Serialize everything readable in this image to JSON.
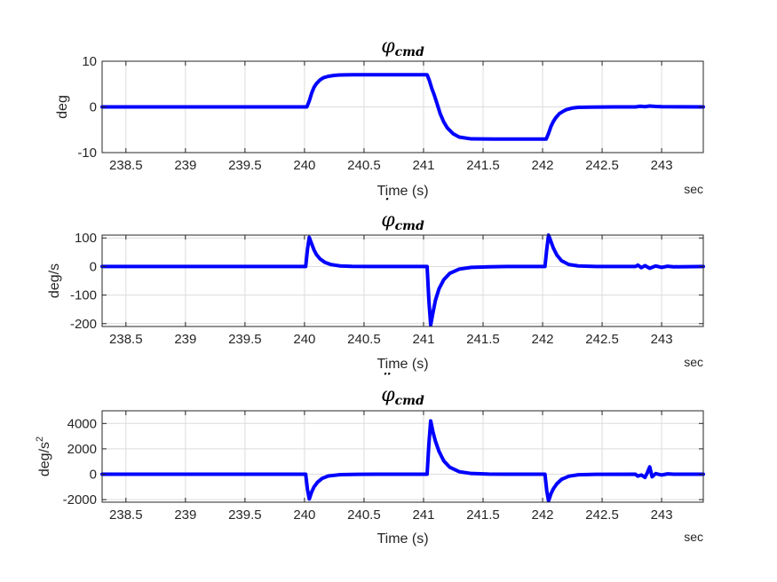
{
  "figure": {
    "background": "#ffffff",
    "line_color": "#0000ff"
  },
  "chart_data": [
    {
      "type": "line",
      "title": "φ",
      "title_subscript": "cmd",
      "title_accent": "",
      "xlabel": "Time (s)",
      "xunit": "sec",
      "ylabel": "deg",
      "ylabel_sup": "",
      "xlim": [
        238.3,
        243.35
      ],
      "ylim": [
        -10,
        10
      ],
      "xticks": [
        238.5,
        239,
        239.5,
        240,
        240.5,
        241,
        241.5,
        242,
        242.5,
        243
      ],
      "xtick_labels": [
        "238.5",
        "239",
        "239.5",
        "240",
        "240.5",
        "241",
        "241.5",
        "242",
        "242.5",
        "243"
      ],
      "yticks": [
        -10,
        0,
        10
      ],
      "ytick_labels": [
        "-10",
        "0",
        "10"
      ],
      "grid": true,
      "series": [
        {
          "x": [
            238.3,
            240.02,
            240.04,
            240.06,
            240.08,
            240.1,
            240.13,
            240.16,
            240.2,
            240.25,
            240.3,
            240.4,
            240.6,
            241.03,
            241.05,
            241.07,
            241.09,
            241.11,
            241.14,
            241.17,
            241.2,
            241.25,
            241.3,
            241.4,
            241.6,
            242.03,
            242.05,
            242.07,
            242.09,
            242.11,
            242.14,
            242.17,
            242.2,
            242.25,
            242.3,
            242.4,
            242.6,
            242.78,
            242.82,
            242.86,
            242.9,
            242.95,
            243.0,
            243.35
          ],
          "y": [
            0,
            0,
            1.3,
            3.0,
            4.3,
            5.1,
            5.9,
            6.4,
            6.7,
            6.9,
            7.0,
            7.05,
            7.05,
            7.05,
            5.7,
            4.0,
            2.6,
            1.0,
            -1.5,
            -3.3,
            -4.6,
            -5.9,
            -6.6,
            -7.0,
            -7.05,
            -7.05,
            -5.8,
            -4.3,
            -3.2,
            -2.4,
            -1.5,
            -1.0,
            -0.6,
            -0.25,
            -0.1,
            -0.05,
            0,
            0,
            0.15,
            0.05,
            0.2,
            0.1,
            0.05,
            0
          ]
        }
      ]
    },
    {
      "type": "line",
      "title": "φ",
      "title_subscript": "cmd",
      "title_accent": "˙",
      "xlabel": "Time (s)",
      "xunit": "sec",
      "ylabel": "deg/s",
      "ylabel_sup": "",
      "xlim": [
        238.3,
        243.35
      ],
      "ylim": [
        -210,
        110
      ],
      "xticks": [
        238.5,
        239,
        239.5,
        240,
        240.5,
        241,
        241.5,
        242,
        242.5,
        243
      ],
      "xtick_labels": [
        "238.5",
        "239",
        "239.5",
        "240",
        "240.5",
        "241",
        "241.5",
        "242",
        "242.5",
        "243"
      ],
      "yticks": [
        -200,
        -100,
        0,
        100
      ],
      "ytick_labels": [
        "-200",
        "-100",
        "0",
        "100"
      ],
      "grid": true,
      "series": [
        {
          "x": [
            238.3,
            240.01,
            240.025,
            240.04,
            240.06,
            240.08,
            240.1,
            240.13,
            240.17,
            240.22,
            240.3,
            240.4,
            240.55,
            241.03,
            241.045,
            241.06,
            241.08,
            241.1,
            241.13,
            241.17,
            241.22,
            241.3,
            241.4,
            241.55,
            241.7,
            242.02,
            242.035,
            242.05,
            242.07,
            242.09,
            242.12,
            242.16,
            242.22,
            242.3,
            242.45,
            242.78,
            242.8,
            242.83,
            242.86,
            242.9,
            242.95,
            243.0,
            243.05,
            243.1,
            243.35
          ],
          "y": [
            0,
            0,
            60,
            102,
            80,
            58,
            42,
            27,
            15,
            7,
            2,
            0.5,
            0,
            0,
            -120,
            -205,
            -160,
            -118,
            -78,
            -46,
            -24,
            -9,
            -3,
            -1,
            0,
            0,
            60,
            110,
            88,
            65,
            40,
            20,
            7,
            2,
            0,
            0,
            5,
            -4,
            3,
            -6,
            2,
            -3,
            1,
            -1,
            0
          ]
        }
      ]
    },
    {
      "type": "line",
      "title": "φ",
      "title_subscript": "cmd",
      "title_accent": "¨",
      "xlabel": "Time (s)",
      "xunit": "sec",
      "ylabel": "deg/s",
      "ylabel_sup": "2",
      "xlim": [
        238.3,
        243.35
      ],
      "ylim": [
        -2200,
        5000
      ],
      "xticks": [
        238.5,
        239,
        239.5,
        240,
        240.5,
        241,
        241.5,
        242,
        242.5,
        243
      ],
      "xtick_labels": [
        "238.5",
        "239",
        "239.5",
        "240",
        "240.5",
        "241",
        "241.5",
        "242",
        "242.5",
        "243"
      ],
      "yticks": [
        -2000,
        0,
        2000,
        4000
      ],
      "ytick_labels": [
        "-2000",
        "0",
        "2000",
        "4000"
      ],
      "grid": true,
      "series": [
        {
          "x": [
            238.3,
            240.01,
            240.025,
            240.04,
            240.06,
            240.08,
            240.11,
            240.15,
            240.2,
            240.3,
            240.45,
            240.6,
            241.03,
            241.045,
            241.06,
            241.08,
            241.1,
            241.13,
            241.17,
            241.22,
            241.3,
            241.4,
            241.55,
            241.7,
            242.02,
            242.035,
            242.05,
            242.07,
            242.09,
            242.12,
            242.16,
            242.22,
            242.3,
            242.45,
            242.78,
            242.8,
            242.83,
            242.86,
            242.88,
            242.9,
            242.92,
            242.95,
            243.0,
            243.05,
            243.1,
            243.35
          ],
          "y": [
            0,
            0,
            -1200,
            -1950,
            -1400,
            -1000,
            -620,
            -320,
            -140,
            -30,
            -5,
            0,
            0,
            2400,
            4200,
            3300,
            2600,
            1800,
            1050,
            550,
            200,
            60,
            10,
            0,
            0,
            -1300,
            -2100,
            -1550,
            -1150,
            -750,
            -400,
            -160,
            -40,
            -5,
            0,
            -150,
            -60,
            -250,
            120,
            580,
            -200,
            50,
            -60,
            30,
            0,
            0
          ]
        }
      ]
    }
  ]
}
